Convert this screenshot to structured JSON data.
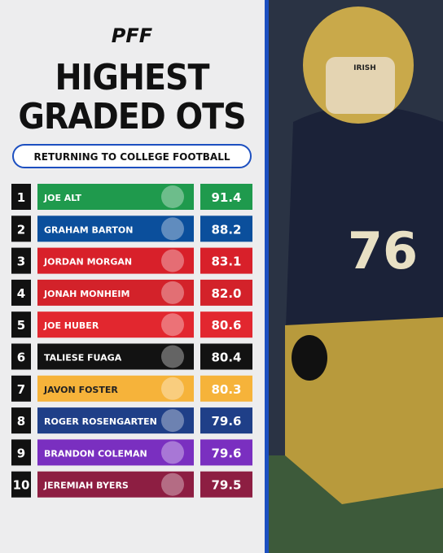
{
  "header": {
    "brand": "PFF",
    "title_lines": [
      "HIGHEST",
      "GRADED OTS"
    ],
    "subtitle": "RETURNING TO COLLEGE FOOTBALL"
  },
  "table": {
    "rows": [
      {
        "rank": "1",
        "name": "JOE ALT",
        "grade": "91.4"
      },
      {
        "rank": "2",
        "name": "GRAHAM BARTON",
        "grade": "88.2"
      },
      {
        "rank": "3",
        "name": "JORDAN MORGAN",
        "grade": "83.1"
      },
      {
        "rank": "4",
        "name": "JONAH MONHEIM",
        "grade": "82.0"
      },
      {
        "rank": "5",
        "name": "JOE HUBER",
        "grade": "80.6"
      },
      {
        "rank": "6",
        "name": "TALIESE FUAGA",
        "grade": "80.4"
      },
      {
        "rank": "7",
        "name": "JAVON FOSTER",
        "grade": "80.3"
      },
      {
        "rank": "8",
        "name": "ROGER ROSENGARTEN",
        "grade": "79.6"
      },
      {
        "rank": "9",
        "name": "BRANDON COLEMAN",
        "grade": "79.6"
      },
      {
        "rank": "10",
        "name": "JEREMIAH BYERS",
        "grade": "79.5"
      }
    ]
  },
  "photo": {
    "helmet_text": "IRISH",
    "jersey_number": "76"
  }
}
